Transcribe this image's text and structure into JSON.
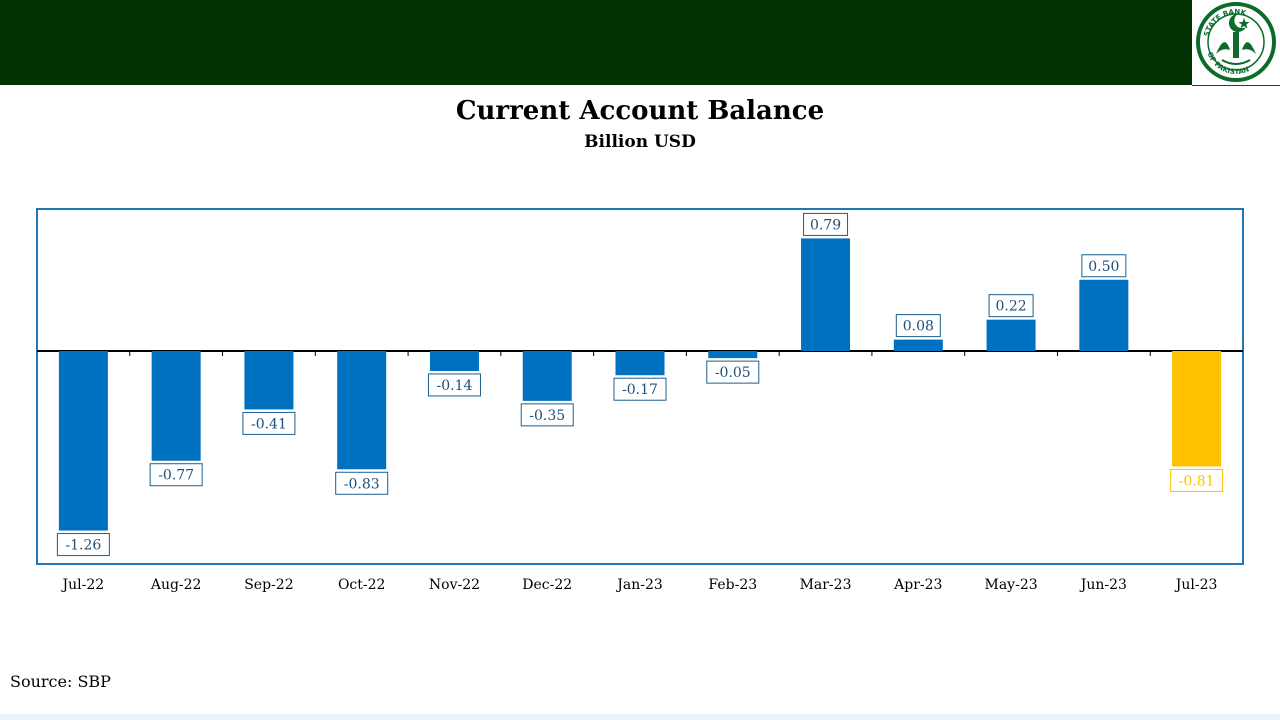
{
  "source": "Source: SBP",
  "logo": {
    "text_top": "STATE BANK",
    "text_bottom": "OF PAKISTAN",
    "icon": "sbp-crescent-star-emblem"
  },
  "colors": {
    "banner": "#033303",
    "bar": "#0070c0",
    "highlight": "#ffc000",
    "frame": "#1f77b4"
  },
  "chart_data": {
    "type": "bar",
    "title": "Current Account Balance",
    "subtitle": "Billion USD",
    "categories": [
      "Jul-22",
      "Aug-22",
      "Sep-22",
      "Oct-22",
      "Nov-22",
      "Dec-22",
      "Jan-23",
      "Feb-23",
      "Mar-23",
      "Apr-23",
      "May-23",
      "Jun-23",
      "Jul-23"
    ],
    "values": [
      -1.26,
      -0.77,
      -0.41,
      -0.83,
      -0.14,
      -0.35,
      -0.17,
      -0.05,
      0.79,
      0.08,
      0.22,
      0.5,
      -0.81
    ],
    "data_labels": [
      "-1.26",
      "-0.77",
      "-0.41",
      "-0.83",
      "-0.14",
      "-0.35",
      "-0.17",
      "-0.05",
      "0.79",
      "0.08",
      "0.22",
      "0.50",
      "-0.81"
    ],
    "highlighted_categories": [
      "Jul-23"
    ],
    "grid": false,
    "legend": "none"
  }
}
